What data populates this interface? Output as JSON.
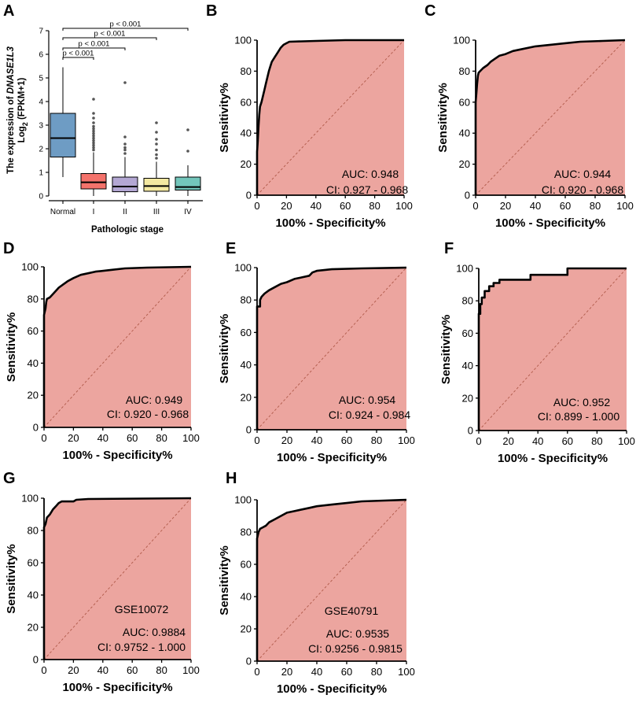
{
  "colors": {
    "roc_fill": "#eca59f",
    "roc_line": "#000000",
    "diagonal": "#b05a4a",
    "box_fills": [
      "#6e9cc4",
      "#f4726b",
      "#b3a7d3",
      "#f3e8a1",
      "#73c6bb"
    ],
    "outlier": "#555555"
  },
  "chart_data": [
    {
      "id": "A",
      "panel_label": "A",
      "type": "box",
      "ylabel_line1_prefix": "The expression of ",
      "ylabel_line1_gene": "DNASE1L3",
      "ylabel_line2_pre": "Log",
      "ylabel_line2_sub": "2",
      "ylabel_line2_post": " (FPKM+1)",
      "xlabel": "Pathologic stage",
      "ylim": [
        -0.2,
        7.3
      ],
      "yticks": [
        0,
        1,
        2,
        3,
        4,
        5,
        6,
        7
      ],
      "categories": [
        "Normal",
        "I",
        "II",
        "III",
        "IV"
      ],
      "boxes": [
        {
          "name": "Normal",
          "whisker_low": 0.8,
          "q1": 1.65,
          "median": 2.45,
          "q3": 3.5,
          "whisker_high": 5.45,
          "outliers": []
        },
        {
          "name": "I",
          "whisker_low": 0.0,
          "q1": 0.3,
          "median": 0.58,
          "q3": 0.95,
          "whisker_high": 1.85,
          "outliers": [
            4.1,
            3.5,
            3.3,
            3.1,
            2.95,
            2.85,
            2.75,
            2.65,
            2.55,
            2.45,
            2.35,
            2.25,
            2.15,
            2.05,
            1.95
          ]
        },
        {
          "name": "II",
          "whisker_low": 0.0,
          "q1": 0.18,
          "median": 0.4,
          "q3": 0.8,
          "whisker_high": 1.65,
          "outliers": [
            4.8,
            2.5,
            2.2,
            2.05,
            1.95,
            1.8
          ]
        },
        {
          "name": "III",
          "whisker_low": 0.0,
          "q1": 0.2,
          "median": 0.42,
          "q3": 0.75,
          "whisker_high": 1.45,
          "outliers": [
            3.1,
            2.7,
            2.4,
            2.2,
            1.95,
            1.75,
            1.6
          ]
        },
        {
          "name": "IV",
          "whisker_low": 0.0,
          "q1": 0.25,
          "median": 0.38,
          "q3": 0.8,
          "whisker_high": 1.3,
          "outliers": [
            2.8,
            1.9
          ]
        }
      ],
      "comparisons": [
        {
          "from": "Normal",
          "to": "IV",
          "label": "p < 0.001"
        },
        {
          "from": "Normal",
          "to": "III",
          "label": "p < 0.001"
        },
        {
          "from": "Normal",
          "to": "II",
          "label": "p < 0.001"
        },
        {
          "from": "Normal",
          "to": "I",
          "label": "p < 0.001"
        }
      ]
    },
    {
      "id": "B",
      "panel_label": "B",
      "type": "roc",
      "xlabel": "100% - Specificity%",
      "ylabel": "Sensitivity%",
      "xlim": [
        0,
        100
      ],
      "ylim": [
        0,
        100
      ],
      "xticks": [
        0,
        20,
        40,
        60,
        80,
        100
      ],
      "yticks": [
        0,
        20,
        40,
        60,
        80,
        100
      ],
      "annotations": [
        "AUC: 0.948",
        "CI: 0.927 - 0.968"
      ],
      "curve": [
        [
          0,
          0
        ],
        [
          0,
          28
        ],
        [
          0.5,
          35
        ],
        [
          1,
          45
        ],
        [
          1.5,
          52
        ],
        [
          2,
          57
        ],
        [
          3,
          60
        ],
        [
          4,
          64
        ],
        [
          5,
          68
        ],
        [
          6,
          72
        ],
        [
          7,
          76
        ],
        [
          8,
          80
        ],
        [
          9,
          83
        ],
        [
          10,
          86
        ],
        [
          12,
          89
        ],
        [
          14,
          92
        ],
        [
          16,
          95
        ],
        [
          18,
          97
        ],
        [
          20,
          98
        ],
        [
          22,
          99
        ],
        [
          40,
          99.5
        ],
        [
          60,
          100
        ],
        [
          80,
          100
        ],
        [
          100,
          100
        ]
      ]
    },
    {
      "id": "C",
      "panel_label": "C",
      "type": "roc",
      "xlabel": "100% - Specificity%",
      "ylabel": "Sensitivity%",
      "xlim": [
        0,
        100
      ],
      "ylim": [
        0,
        100
      ],
      "xticks": [
        0,
        20,
        40,
        60,
        80,
        100
      ],
      "yticks": [
        0,
        20,
        40,
        60,
        80,
        100
      ],
      "annotations": [
        "AUC: 0.944",
        "CI: 0.920 - 0.968"
      ],
      "curve": [
        [
          0,
          0
        ],
        [
          0,
          60
        ],
        [
          0.5,
          66
        ],
        [
          1,
          72
        ],
        [
          1.5,
          77
        ],
        [
          2,
          79
        ],
        [
          3,
          80
        ],
        [
          5,
          82
        ],
        [
          8,
          84
        ],
        [
          10,
          86
        ],
        [
          13,
          88
        ],
        [
          16,
          90
        ],
        [
          20,
          91
        ],
        [
          25,
          93
        ],
        [
          30,
          94
        ],
        [
          40,
          96
        ],
        [
          50,
          97
        ],
        [
          60,
          98
        ],
        [
          70,
          99
        ],
        [
          85,
          99.5
        ],
        [
          100,
          100
        ]
      ]
    },
    {
      "id": "D",
      "panel_label": "D",
      "type": "roc",
      "xlabel": "100% - Specificity%",
      "ylabel": "Sensitivity%",
      "xlim": [
        0,
        100
      ],
      "ylim": [
        0,
        100
      ],
      "xticks": [
        0,
        20,
        40,
        60,
        80,
        100
      ],
      "yticks": [
        0,
        20,
        40,
        60,
        80,
        100
      ],
      "annotations": [
        "AUC: 0.949",
        "CI: 0.920 - 0.968"
      ],
      "curve": [
        [
          0,
          0
        ],
        [
          0,
          70
        ],
        [
          1,
          74
        ],
        [
          1.5,
          78
        ],
        [
          2,
          80
        ],
        [
          4,
          81
        ],
        [
          6,
          83
        ],
        [
          8,
          85
        ],
        [
          10,
          87
        ],
        [
          13,
          89
        ],
        [
          16,
          91
        ],
        [
          20,
          93
        ],
        [
          25,
          95
        ],
        [
          30,
          96
        ],
        [
          35,
          97
        ],
        [
          45,
          98
        ],
        [
          55,
          99
        ],
        [
          70,
          99.5
        ],
        [
          100,
          100
        ]
      ]
    },
    {
      "id": "E",
      "panel_label": "E",
      "type": "roc",
      "xlabel": "100% - Specificity%",
      "ylabel": "Sensitivity%",
      "xlim": [
        0,
        100
      ],
      "ylim": [
        0,
        100
      ],
      "xticks": [
        0,
        20,
        40,
        60,
        80,
        100
      ],
      "yticks": [
        0,
        20,
        40,
        60,
        80,
        100
      ],
      "annotations": [
        "AUC: 0.954",
        "CI: 0.924 - 0.984"
      ],
      "curve": [
        [
          0,
          0
        ],
        [
          0,
          76
        ],
        [
          2,
          76
        ],
        [
          2,
          80
        ],
        [
          3,
          82
        ],
        [
          5,
          84
        ],
        [
          8,
          86
        ],
        [
          12,
          88
        ],
        [
          16,
          90
        ],
        [
          20,
          91
        ],
        [
          25,
          93
        ],
        [
          30,
          94
        ],
        [
          35,
          95
        ],
        [
          37,
          97
        ],
        [
          40,
          98
        ],
        [
          50,
          99
        ],
        [
          70,
          99.5
        ],
        [
          100,
          100
        ]
      ]
    },
    {
      "id": "F",
      "panel_label": "F",
      "type": "roc",
      "xlabel": "100% - Specificity%",
      "ylabel": "Sensitivity%",
      "xlim": [
        0,
        100
      ],
      "ylim": [
        0,
        100
      ],
      "xticks": [
        0,
        20,
        40,
        60,
        80,
        100
      ],
      "yticks": [
        0,
        20,
        40,
        60,
        80,
        100
      ],
      "annotations": [
        "AUC: 0.952",
        "CI: 0.899 - 1.000"
      ],
      "curve": [
        [
          0,
          0
        ],
        [
          0,
          72
        ],
        [
          1,
          72
        ],
        [
          1,
          78
        ],
        [
          2,
          78
        ],
        [
          2,
          82
        ],
        [
          4,
          82
        ],
        [
          4,
          86
        ],
        [
          7,
          86
        ],
        [
          7,
          89
        ],
        [
          10,
          89
        ],
        [
          10,
          91
        ],
        [
          14,
          91
        ],
        [
          14,
          93
        ],
        [
          35,
          93
        ],
        [
          35,
          96
        ],
        [
          60,
          96
        ],
        [
          60,
          100
        ],
        [
          100,
          100
        ]
      ]
    },
    {
      "id": "G",
      "panel_label": "G",
      "type": "roc",
      "xlabel": "100% - Specificity%",
      "ylabel": "Sensitivity%",
      "xlim": [
        0,
        100
      ],
      "ylim": [
        0,
        100
      ],
      "xticks": [
        0,
        20,
        40,
        60,
        80,
        100
      ],
      "yticks": [
        0,
        20,
        40,
        60,
        80,
        100
      ],
      "annotations": [
        "GSE10072",
        "AUC: 0.9884",
        "CI: 0.9752 - 1.000"
      ],
      "curve": [
        [
          0,
          0
        ],
        [
          0,
          82
        ],
        [
          1,
          84
        ],
        [
          2,
          88
        ],
        [
          4,
          90
        ],
        [
          6,
          93
        ],
        [
          8,
          95
        ],
        [
          10,
          97
        ],
        [
          12,
          98
        ],
        [
          20,
          98
        ],
        [
          22,
          99
        ],
        [
          30,
          99.5
        ],
        [
          100,
          100
        ]
      ]
    },
    {
      "id": "H",
      "panel_label": "H",
      "type": "roc",
      "xlabel": "100% - Specificity%",
      "ylabel": "Sensitivity%",
      "xlim": [
        0,
        100
      ],
      "ylim": [
        0,
        100
      ],
      "xticks": [
        0,
        20,
        40,
        60,
        80,
        100
      ],
      "yticks": [
        0,
        20,
        40,
        60,
        80,
        100
      ],
      "annotations": [
        "GSE40791",
        "AUC: 0.9535",
        "CI: 0.9256 - 0.9815"
      ],
      "curve": [
        [
          0,
          0
        ],
        [
          0,
          76
        ],
        [
          1,
          80
        ],
        [
          2,
          82
        ],
        [
          4,
          83
        ],
        [
          6,
          84
        ],
        [
          8,
          86
        ],
        [
          12,
          88
        ],
        [
          16,
          90
        ],
        [
          20,
          92
        ],
        [
          25,
          93
        ],
        [
          30,
          94
        ],
        [
          35,
          95
        ],
        [
          40,
          96
        ],
        [
          50,
          97
        ],
        [
          60,
          98
        ],
        [
          70,
          99
        ],
        [
          85,
          99.5
        ],
        [
          100,
          100
        ]
      ]
    }
  ]
}
